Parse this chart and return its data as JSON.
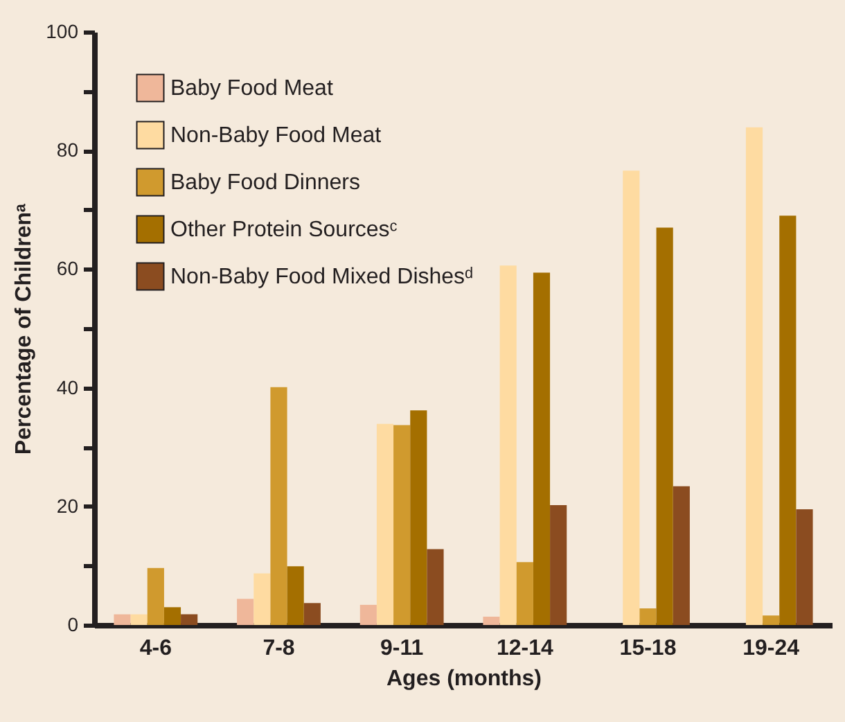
{
  "chart_data": {
    "type": "bar",
    "xlabel": "Ages (months)",
    "ylabel": "Percentage of Childrenᵃ",
    "categories": [
      "4-6",
      "7-8",
      "9-11",
      "12-14",
      "15-18",
      "19-24"
    ],
    "series": [
      {
        "name": "Baby Food Meat",
        "color": "#efb79a",
        "values": [
          1.8,
          4.4,
          3.4,
          1.4,
          0,
          0
        ]
      },
      {
        "name": "Non-Baby Food Meat",
        "color": "#fedba1",
        "values": [
          1.8,
          8.7,
          33.9,
          60.6,
          76.6,
          83.9
        ]
      },
      {
        "name": "Baby Food Dinners",
        "color": "#d09a2e",
        "values": [
          9.6,
          40.1,
          33.7,
          10.6,
          2.8,
          1.6
        ]
      },
      {
        "name": "Other Protein Sourcesᶜ",
        "color": "#a46f00",
        "values": [
          3.0,
          9.9,
          36.2,
          59.4,
          67.0,
          69.0
        ]
      },
      {
        "name": "Non-Baby Food Mixed Dishesᵈ",
        "color": "#8b4c20",
        "values": [
          1.8,
          3.7,
          12.8,
          20.2,
          23.4,
          19.5
        ]
      }
    ],
    "ylim": [
      0,
      100
    ],
    "yticks": [
      0,
      {
        "value": 10,
        "label": null
      },
      20,
      {
        "value": 30,
        "label": null
      },
      40,
      {
        "value": 50,
        "label": null
      },
      60,
      {
        "value": 70,
        "label": null
      },
      80,
      {
        "value": 90,
        "label": null
      },
      100
    ],
    "grid": false,
    "legend": "top left"
  }
}
